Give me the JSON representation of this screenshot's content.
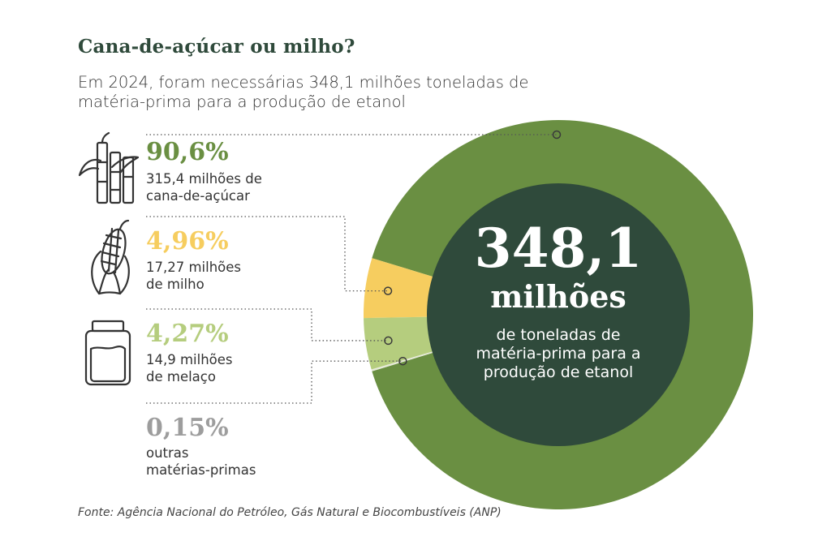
{
  "title": "Cana-de-açúcar ou milho?",
  "subtitle": "Em 2024, foram necessárias 348,1 milhões toneladas de matéria-prima para a produção de etanol",
  "center": {
    "value": "348,1",
    "unit": "milhões",
    "description": "de toneladas de matéria-prima para a produção de etanol"
  },
  "items": [
    {
      "percent": "90,6%",
      "amount": "315,4 milhões de",
      "label": "cana-de-açúcar",
      "color": "#6a8f42",
      "icon": "sugarcane-icon"
    },
    {
      "percent": "4,96%",
      "amount": "17,27 milhões",
      "label": "de milho",
      "color": "#f6cd5f",
      "icon": "corn-icon"
    },
    {
      "percent": "4,27%",
      "amount": "14,9 milhões",
      "label": "de melaço",
      "color": "#b5cd7e",
      "icon": "jar-icon"
    },
    {
      "percent": "0,15%",
      "amount": "outras",
      "label": "matérias-primas",
      "color": "#9d9d9d",
      "icon": ""
    }
  ],
  "source": "Fonte: Agência Nacional do Petróleo, Gás Natural e Biocombustíveis (ANP)",
  "chart_data": {
    "type": "pie",
    "title": "Cana-de-açúcar ou milho?",
    "subtitle": "Em 2024, foram necessárias 348,1 milhões toneladas de matéria-prima para a produção de etanol",
    "total": 348.1,
    "total_label": "348,1 milhões de toneladas de matéria-prima para a produção de etanol",
    "categories": [
      "cana-de-açúcar",
      "milho",
      "melaço",
      "outras matérias-primas"
    ],
    "values": [
      90.6,
      4.96,
      4.27,
      0.15
    ],
    "amounts_millions_tonnes": [
      315.4,
      17.27,
      14.9,
      null
    ],
    "colors": [
      "#6a8f42",
      "#f6cd5f",
      "#b5cd7e",
      "#e6ead8"
    ],
    "center_color": "#2f4a3b"
  }
}
